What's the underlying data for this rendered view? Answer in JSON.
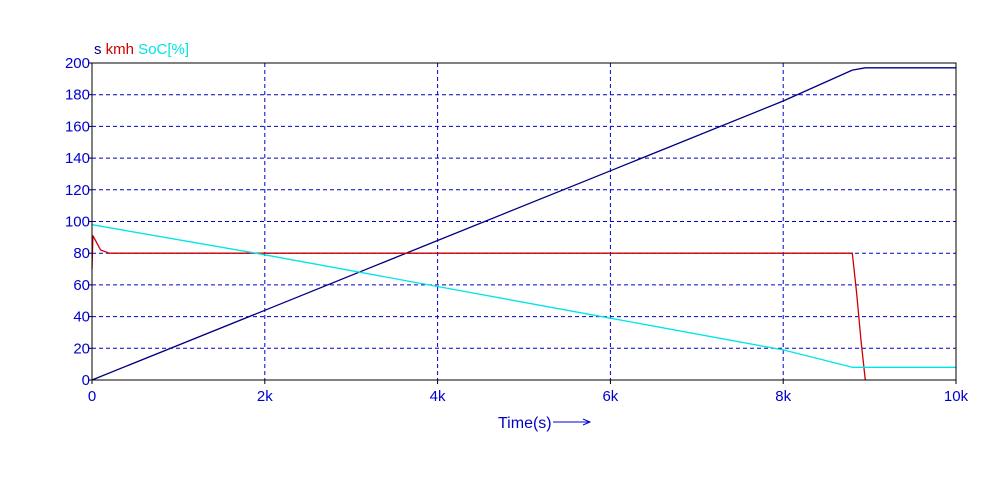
{
  "chart_data": {
    "type": "line",
    "xlabel": "Time(s)",
    "xlim": [
      0,
      10000
    ],
    "ylim": [
      0,
      200
    ],
    "x_ticks": [
      0,
      2000,
      4000,
      6000,
      8000,
      10000
    ],
    "x_tick_labels": [
      "0",
      "2k",
      "4k",
      "6k",
      "8k",
      "10k"
    ],
    "y_ticks": [
      0,
      20,
      40,
      60,
      80,
      100,
      120,
      140,
      160,
      180,
      200
    ],
    "y_tick_labels": [
      "0",
      "20",
      "40",
      "60",
      "80",
      "100",
      "120",
      "140",
      "160",
      "180",
      "200"
    ],
    "grid": true,
    "legend_position": "top-left",
    "series": [
      {
        "name": "s",
        "color": "#000080",
        "x": [
          0,
          2000,
          4000,
          6000,
          8000,
          8800,
          8950,
          10000
        ],
        "y": [
          0,
          44,
          88,
          132,
          176,
          195.5,
          197,
          197
        ]
      },
      {
        "name": "kmh",
        "color": "#cc0000",
        "x": [
          0,
          10,
          40,
          100,
          200,
          2000,
          6000,
          8700,
          8800,
          8850,
          8900,
          8950
        ],
        "y": [
          70,
          91,
          88,
          82,
          80,
          80,
          80,
          80,
          80,
          55,
          25,
          0
        ]
      },
      {
        "name": "SoC[%]",
        "color": "#00e5e5",
        "x": [
          0,
          2000,
          4000,
          6000,
          8000,
          8800,
          10000
        ],
        "y": [
          98,
          79,
          59,
          39,
          19,
          8,
          8
        ]
      }
    ]
  }
}
